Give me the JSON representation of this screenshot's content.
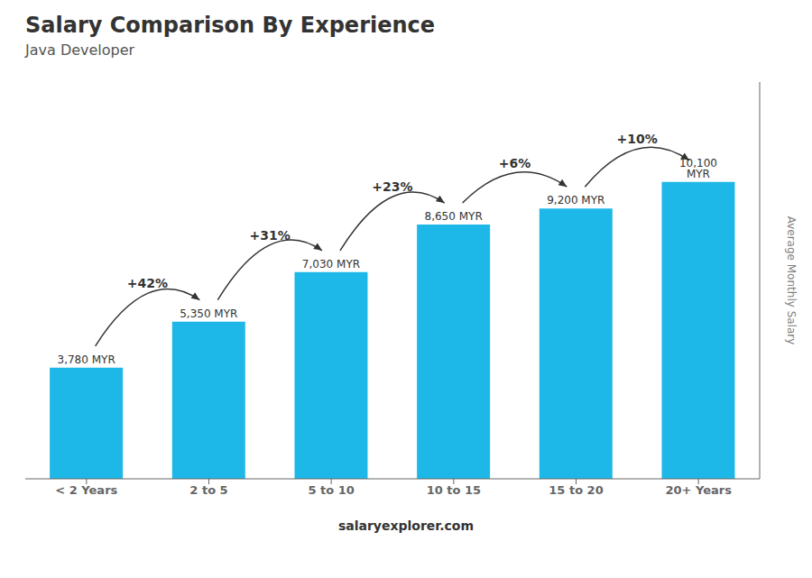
{
  "chart_data": {
    "type": "bar",
    "title": "Salary Comparison By Experience",
    "subtitle": "Java Developer",
    "y_label": "Average Monthly Salary",
    "categories": [
      "< 2 Years",
      "2 to 5",
      "5 to 10",
      "10 to 15",
      "15 to 20",
      "20+ Years"
    ],
    "values": [
      3780,
      5350,
      7030,
      8650,
      9200,
      10100
    ],
    "value_labels": [
      "3,780 MYR",
      "5,350 MYR",
      "7,030 MYR",
      "8,650 MYR",
      "9,200 MYR",
      "10,100 MYR"
    ],
    "data_labels": true,
    "annotations": [
      "+42%",
      "+31%",
      "+23%",
      "+6%",
      "+10%"
    ],
    "footer": "salaryexplorer.com",
    "color": "#1eb8e8",
    "ylim": [
      0,
      13500
    ],
    "grid": false,
    "tick_labels": "x"
  }
}
